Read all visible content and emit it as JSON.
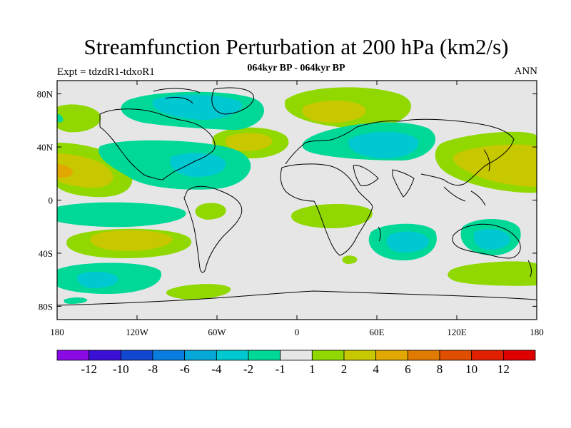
{
  "header": {
    "title": "Streamfunction Perturbation at 200 hPa (km2/s)",
    "experiment": "Expt = tdzdR1-tdxoR1",
    "subtitle": "064kyr BP - 064kyr BP",
    "season": "ANN"
  },
  "map": {
    "lat_ticks": [
      "80N",
      "40N",
      "0",
      "40S",
      "80S"
    ],
    "lon_ticks": [
      "180",
      "120W",
      "60W",
      "0",
      "60E",
      "120E",
      "180"
    ],
    "background_color": "#e6e6e6",
    "features": [
      {
        "name": "pos-1-2",
        "level": 1
      },
      {
        "name": "neg-1-2",
        "level": -1
      }
    ]
  },
  "colorbar": {
    "labels": [
      "-12",
      "-10",
      "-8",
      "-6",
      "-4",
      "-2",
      "-1",
      "1",
      "2",
      "4",
      "6",
      "8",
      "10",
      "12"
    ],
    "colors": [
      "#8a0ae6",
      "#3a10d6",
      "#1248d0",
      "#0a7ee0",
      "#06a8d8",
      "#00c8d0",
      "#00d898",
      "#e6e6e6",
      "#90d800",
      "#c8c800",
      "#e0a800",
      "#e07a00",
      "#e04e00",
      "#e02000",
      "#e00000"
    ]
  },
  "chart_data": {
    "type": "heatmap",
    "title": "Streamfunction Perturbation at 200 hPa (km2/s)",
    "variable": "streamfunction perturbation",
    "units": "km2/s",
    "level": "200 hPa",
    "x_range": [
      -180,
      180
    ],
    "y_range": [
      -90,
      90
    ],
    "contour_levels": [
      -12,
      -10,
      -8,
      -6,
      -4,
      -2,
      -1,
      1,
      2,
      4,
      6,
      8,
      10,
      12
    ]
  }
}
